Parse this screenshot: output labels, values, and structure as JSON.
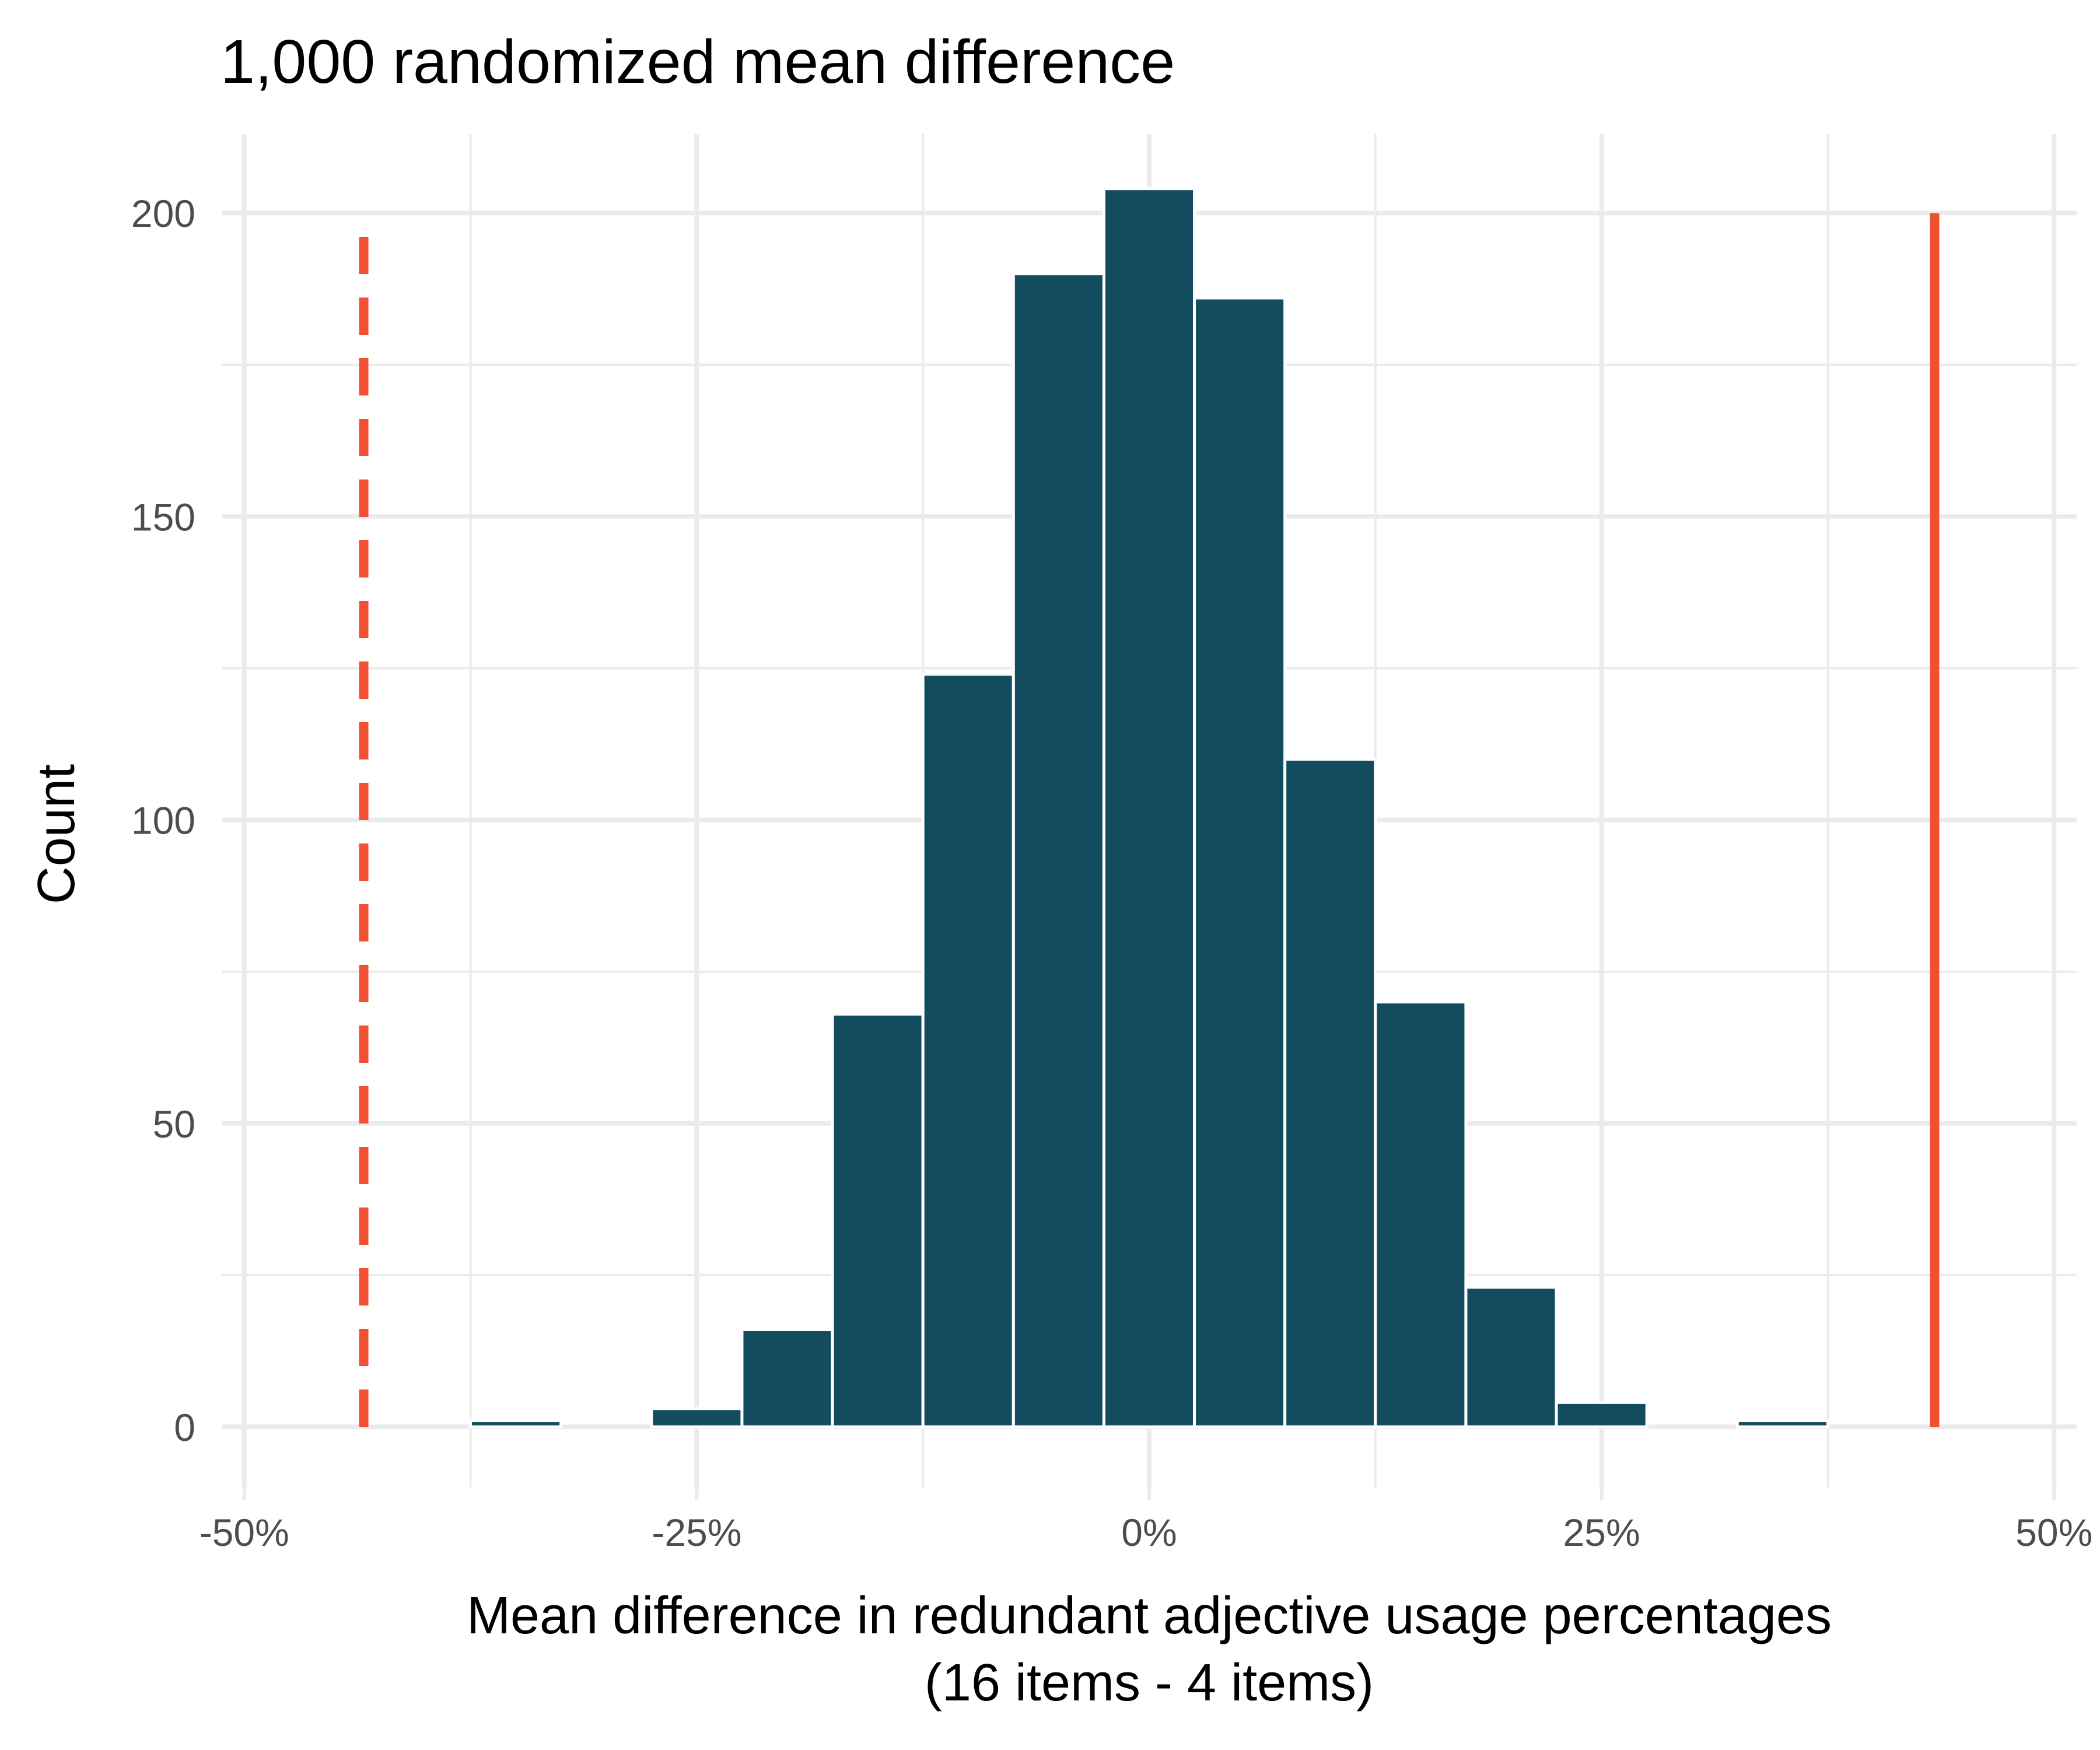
{
  "chart_data": {
    "type": "bar",
    "title": "1,000 randomized mean difference",
    "xlabel": "Mean difference in redundant adjective usage percentages",
    "xlabel_line2": "(16 items - 4 items)",
    "ylabel": "Count",
    "xlim": [
      -0.5125,
      0.5125
    ],
    "ylim": [
      -10,
      213
    ],
    "x_ticks": [
      -0.5,
      -0.25,
      0,
      0.25,
      0.5
    ],
    "x_tick_labels": [
      "-50%",
      "-25%",
      "0%",
      "25%",
      "50%"
    ],
    "y_ticks": [
      0,
      50,
      100,
      150,
      200
    ],
    "y_tick_labels": [
      "0",
      "50",
      "100",
      "150",
      "200"
    ],
    "bin_width": 0.05,
    "bin_centers": [
      -0.45,
      -0.4,
      -0.35,
      -0.3,
      -0.25,
      -0.2,
      -0.15,
      -0.1,
      -0.05,
      0,
      0.05,
      0.1,
      0.15,
      0.2,
      0.25,
      0.3,
      0.35,
      0.4,
      0.45
    ],
    "values": [
      0,
      0,
      1,
      0,
      3,
      16,
      68,
      124,
      190,
      204,
      186,
      110,
      70,
      23,
      4,
      0,
      1,
      0,
      0
    ],
    "grid": true,
    "bar_color": "#134b5f",
    "bar_outline": "#ffffff",
    "reference_lines": [
      {
        "x": -0.434,
        "style": "dashed",
        "color": "#f05133",
        "y_top": 198
      },
      {
        "x": 0.434,
        "style": "solid",
        "color": "#f05133",
        "y_top": 200
      }
    ]
  }
}
